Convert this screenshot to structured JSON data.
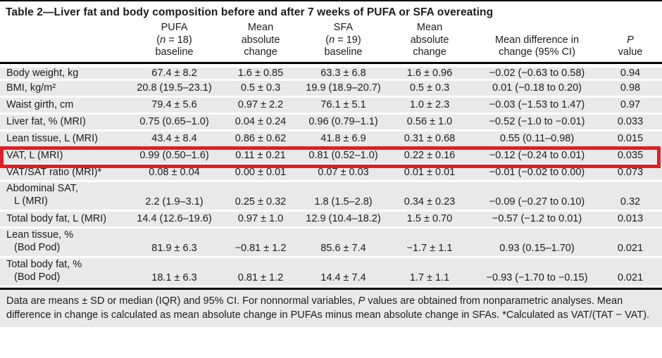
{
  "title": "Table 2—Liver fat and body composition before and after 7 weeks of PUFA or SFA overeating",
  "colors": {
    "highlight_red": "#e21d24",
    "row_gray": "#e9e9e9",
    "rule_black": "#000000"
  },
  "header": {
    "columns": [
      {
        "l1": "PUFA",
        "l2_pre": "(",
        "l2_it": "n",
        "l2_post": " = 18)",
        "l3": "baseline"
      },
      {
        "l1": "Mean",
        "l2": "absolute",
        "l3": "change"
      },
      {
        "l1": "SFA",
        "l2_pre": "(",
        "l2_it": "n",
        "l2_post": " = 19)",
        "l3": "baseline"
      },
      {
        "l1": "Mean",
        "l2": "absolute",
        "l3": "change"
      },
      {
        "l2": "Mean difference in",
        "l3": "change (95% CI)"
      },
      {
        "l2_it": "P",
        "l3": "value"
      }
    ]
  },
  "rows": [
    {
      "label": "Body weight, kg",
      "b1": "67.4 ± 8.2",
      "ch1": "1.6 ± 0.85",
      "b2": "63.3 ± 6.8",
      "ch2": "1.6 ± 0.96",
      "diff": "−0.02 (−0.63 to 0.58)",
      "p": "0.94"
    },
    {
      "label": "BMI, kg/m²",
      "b1": "20.8 (19.5–23.1)",
      "ch1": "0.5 ± 0.3",
      "b2": "19.9 (18.9–20.7)",
      "ch2": "0.5 ± 0.3",
      "diff": "0.01 (−0.18 to 0.20)",
      "p": "0.98"
    },
    {
      "label": "Waist girth, cm",
      "b1": "79.4 ± 5.6",
      "ch1": "0.97 ± 2.2",
      "b2": "76.1 ± 5.1",
      "ch2": "1.0 ± 2.3",
      "diff": "−0.03 (−1.53 to 1.47)",
      "p": "0.97"
    },
    {
      "label": "Liver fat, % (MRI)",
      "b1": "0.75 (0.65–1.0)",
      "ch1": "0.04 ± 0.24",
      "b2": "0.96 (0.79–1.1)",
      "ch2": "0.56 ± 1.0",
      "diff": "−0.52 (−1.0 to −0.01)",
      "p": "0.033"
    },
    {
      "label": "Lean tissue, L (MRI)",
      "b1": "43.4 ± 8.4",
      "ch1": "0.86 ± 0.62",
      "b2": "41.8 ± 6.9",
      "ch2": "0.31 ± 0.68",
      "diff": "0.55 (0.11–0.98)",
      "p": "0.015"
    },
    {
      "label": "VAT, L (MRI)",
      "b1": "0.99 (0.50–1.6)",
      "ch1": "0.11 ± 0.21",
      "b2": "0.81 (0.52–1.0)",
      "ch2": "0.22 ± 0.16",
      "diff": "−0.12 (−0.24 to 0.01)",
      "p": "0.035",
      "highlighted": true
    },
    {
      "label": "VAT/SAT ratio (MRI)*",
      "b1": "0.08 ± 0.04",
      "ch1": "0.00 ± 0.01",
      "b2": "0.07 ± 0.03",
      "ch2": "0.01 ± 0.01",
      "diff": "−0.01 (−0.02 to 0.00)",
      "p": "0.073"
    },
    {
      "label": "Abdominal SAT,",
      "label2": "L (MRI)",
      "b1": "2.2 (1.9–3.1)",
      "ch1": "0.25 ± 0.32",
      "b2": "1.8 (1.5–2.8)",
      "ch2": "0.34 ± 0.23",
      "diff": "−0.09 (−0.27 to 0.10)",
      "p": "0.32"
    },
    {
      "label": "Total body fat, L (MRI)",
      "b1": "14.4 (12.6–19.6)",
      "ch1": "0.97 ± 1.0",
      "b2": "12.9 (10.4–18.2)",
      "ch2": "1.5 ± 0.70",
      "diff": "−0.57 (−1.2 to 0.01)",
      "p": "0.013"
    },
    {
      "label": "Lean tissue, %",
      "label2": "(Bod Pod)",
      "b1": "81.9 ± 6.3",
      "ch1": "−0.81 ± 1.2",
      "b2": "85.6 ± 7.4",
      "ch2": "−1.7 ± 1.1",
      "diff": "0.93 (0.15–1.70)",
      "p": "0.021"
    },
    {
      "label": "Total body fat, %",
      "label2": "(Bod Pod)",
      "b1": "18.1 ± 6.3",
      "ch1": "0.81 ± 1.2",
      "b2": "14.4 ± 7.4",
      "ch2": "1.7 ± 1.1",
      "diff": "−0.93 (−1.70 to −0.15)",
      "p": "0.021"
    }
  ],
  "footnote": {
    "part1": "Data are means ± SD or median (IQR) and 95% CI. For nonnormal variables, ",
    "it": "P",
    "part2": " values are obtained from nonparametric analyses. Mean difference in change is calculated as mean absolute change in PUFAs minus mean absolute change in SFAs. *Calculated as VAT/(TAT − VAT)."
  }
}
